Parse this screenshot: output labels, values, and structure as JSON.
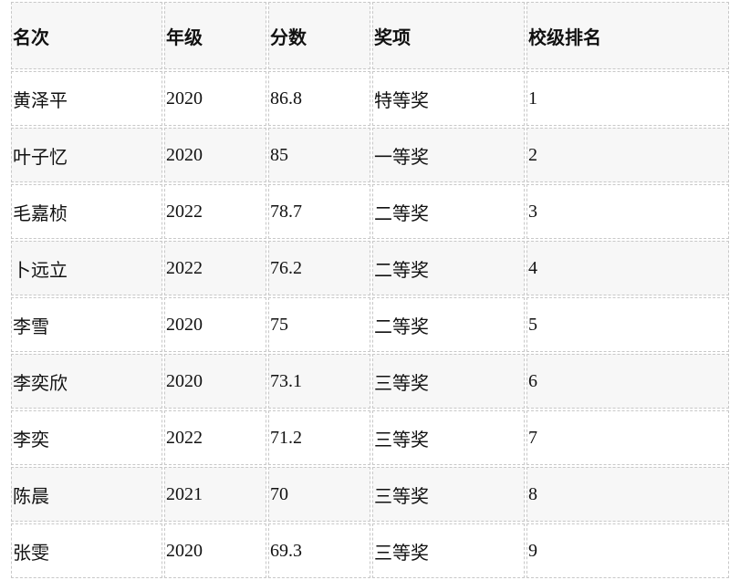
{
  "headers": [
    "名次",
    "年级",
    "分数",
    "奖项",
    "校级排名"
  ],
  "rows": [
    [
      "黄泽平",
      "2020",
      "86.8",
      "特等奖",
      "1"
    ],
    [
      "叶子忆",
      "2020",
      "85",
      "一等奖",
      "2"
    ],
    [
      "毛嘉桢",
      "2022",
      "78.7",
      "二等奖",
      "3"
    ],
    [
      "卜远立",
      "2022",
      "76.2",
      "二等奖",
      "4"
    ],
    [
      "李雪",
      "2020",
      "75",
      "二等奖",
      "5"
    ],
    [
      "李奕欣",
      "2020",
      "73.1",
      "三等奖",
      "6"
    ],
    [
      "李奕",
      "2022",
      "71.2",
      "三等奖",
      "7"
    ],
    [
      "陈晨",
      "2021",
      "70",
      "三等奖",
      "8"
    ],
    [
      "张雯",
      "2020",
      "69.3",
      "三等奖",
      "9"
    ]
  ]
}
